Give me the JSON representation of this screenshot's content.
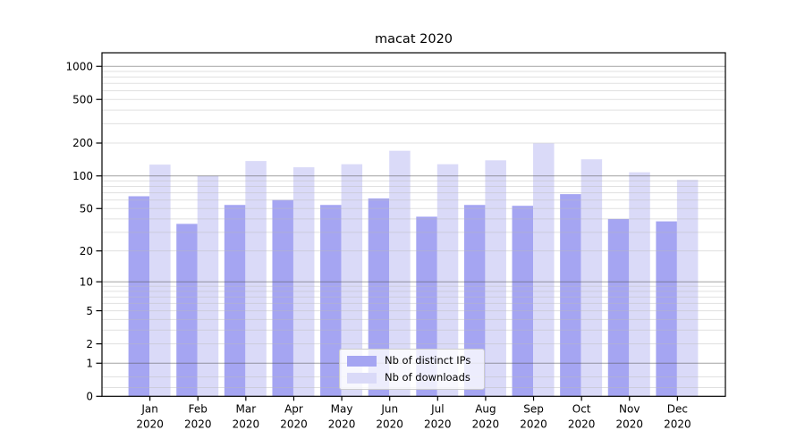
{
  "chart_data": {
    "type": "bar",
    "title": "macat 2020",
    "categories": [
      "Jan 2020",
      "Feb 2020",
      "Mar 2020",
      "Apr 2020",
      "May 2020",
      "Jun 2020",
      "Jul 2020",
      "Aug 2020",
      "Sep 2020",
      "Oct 2020",
      "Nov 2020",
      "Dec 2020"
    ],
    "series": [
      {
        "name": "Nb of distinct IPs",
        "color": "#a5a5f2",
        "values": [
          65,
          36,
          54,
          60,
          54,
          62,
          42,
          54,
          53,
          68,
          40,
          38
        ]
      },
      {
        "name": "Nb of downloads",
        "color": "#dadaf8",
        "values": [
          127,
          100,
          137,
          120,
          128,
          170,
          128,
          139,
          199,
          142,
          108,
          92
        ]
      }
    ],
    "xlabel": "",
    "ylabel": "",
    "ylim": [
      0,
      1330
    ],
    "y_axis": {
      "scale": "log10(value+1)",
      "tick_values": [
        1000,
        500,
        200,
        100,
        50,
        20,
        10,
        5,
        2,
        1,
        0
      ],
      "major_grid_values": [
        1,
        10,
        100,
        1000
      ],
      "minor_grid_values": [
        0.2,
        0.5,
        2,
        3,
        4,
        5,
        6,
        7,
        8,
        9,
        20,
        30,
        40,
        50,
        60,
        70,
        80,
        90,
        200,
        300,
        400,
        500,
        600,
        700,
        800,
        900
      ]
    },
    "grid": true,
    "legend_position": "lower center"
  },
  "colors": {
    "axis": "#000000",
    "text": "#000000",
    "grid_major": "#555555",
    "grid_minor": "#bbbbbb",
    "legend_border": "#cccccc",
    "background": "#ffffff"
  }
}
